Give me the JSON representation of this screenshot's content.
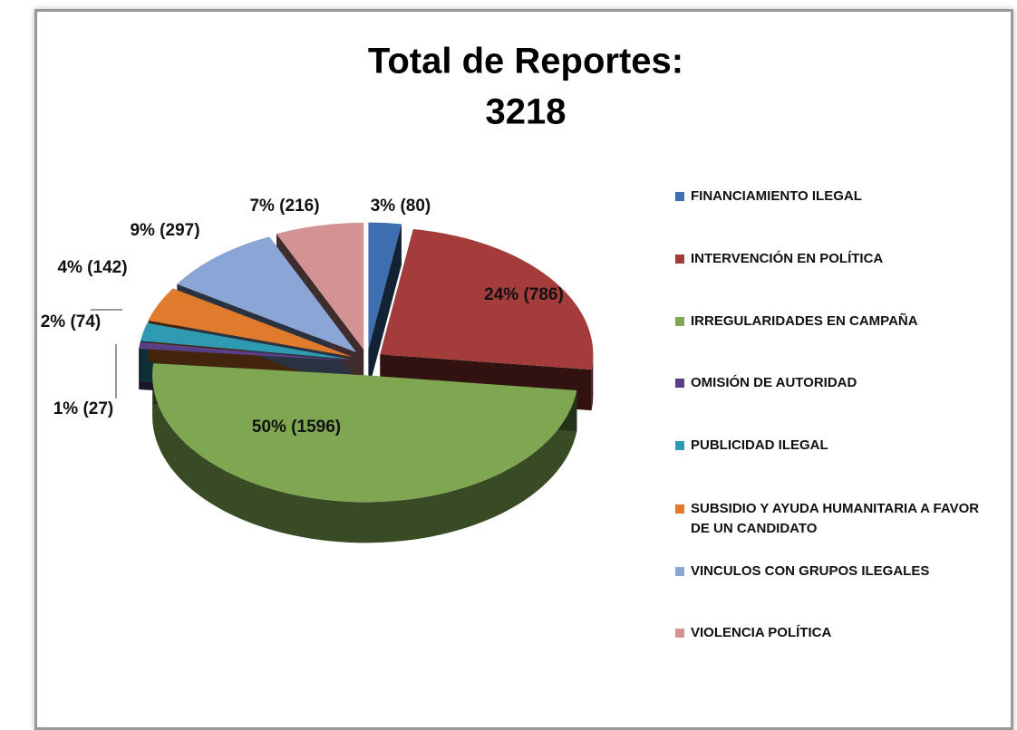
{
  "chart_data": {
    "type": "pie",
    "title": "Total de Reportes:",
    "subtitle": "3218",
    "categories": [
      "FINANCIAMIENTO ILEGAL",
      "INTERVENCIÓN EN POLÍTICA",
      "IRREGULARIDADES EN CAMPAÑA",
      "OMISIÓN DE AUTORIDAD",
      "PUBLICIDAD ILEGAL",
      "SUBSIDIO Y AYUDA HUMANITARIA A FAVOR DE UN CANDIDATO",
      "VINCULOS CON GRUPOS ILEGALES",
      "VIOLENCIA POLÍTICA"
    ],
    "values": [
      80,
      786,
      1596,
      27,
      74,
      142,
      297,
      216
    ],
    "value_labels": [
      "3% (80)",
      "24% (786)",
      "50% (1596)",
      "1% (27)",
      "2% (74)",
      "4% (142)",
      "9% (297)",
      "7% (216)"
    ],
    "colors": [
      "#3e6fb0",
      "#a33c3a",
      "#7fa650",
      "#5b3f86",
      "#2f9bb2",
      "#e07b2e",
      "#8aa6d6",
      "#d39393"
    ],
    "legend": "right"
  }
}
